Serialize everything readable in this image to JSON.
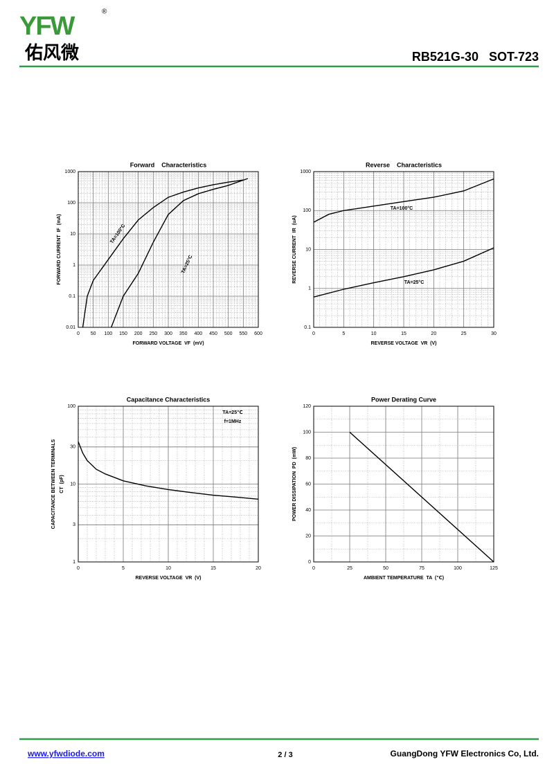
{
  "header": {
    "logo": "YFW",
    "registered": "®",
    "logo_cn": "佑风微",
    "part": "RB521G-30   SOT-723"
  },
  "footer": {
    "website": "www.yfwdiode.com",
    "page": "2 / 3",
    "company": "GuangDong YFW Electronics Co, Ltd."
  },
  "chart_data": [
    {
      "type": "line",
      "title": "Forward    Characteristics",
      "xlabel": "FORWARD VOLTAGE  VF  (mV)",
      "ylabel": "FORWARD CURRENT  IF  (mA)",
      "xlim": [
        0,
        600
      ],
      "xticks": [
        0,
        50,
        100,
        150,
        200,
        250,
        300,
        350,
        400,
        450,
        500,
        550,
        600
      ],
      "ylim": [
        0.01,
        1000
      ],
      "yticks": [
        0.01,
        0.1,
        1,
        10,
        100,
        1000
      ],
      "ylog": true,
      "grid": true,
      "series": [
        {
          "name": "TA=100°C",
          "color": "#000000",
          "x": [
            15,
            30,
            50,
            100,
            150,
            200,
            250,
            300,
            350,
            400,
            450,
            500,
            550
          ],
          "values": [
            0.01,
            0.1,
            0.32,
            1.5,
            7,
            28,
            70,
            150,
            220,
            300,
            380,
            460,
            540
          ]
        },
        {
          "name": "TA=25°C",
          "color": "#000000",
          "x": [
            110,
            150,
            200,
            250,
            300,
            350,
            400,
            450,
            500,
            565
          ],
          "values": [
            0.01,
            0.1,
            0.54,
            5.4,
            42,
            117,
            195,
            270,
            360,
            600
          ]
        }
      ]
    },
    {
      "type": "line",
      "title": "Reverse    Characteristics",
      "xlabel": "REVERSE VOLTAGE  VR  (V)",
      "ylabel": "REVERSE CURRENT  IR  (uA)",
      "xlim": [
        0,
        30
      ],
      "xticks": [
        0,
        5,
        10,
        15,
        20,
        25,
        30
      ],
      "ylim": [
        0.1,
        1000
      ],
      "yticks": [
        0.1,
        1,
        10,
        100,
        1000
      ],
      "ylog": true,
      "grid": true,
      "series": [
        {
          "name": "TA=100°C",
          "color": "#000000",
          "x": [
            0,
            2.5,
            5,
            10,
            15,
            20,
            25,
            30
          ],
          "values": [
            50,
            80,
            100,
            130,
            170,
            220,
            320,
            650
          ]
        },
        {
          "name": "TA=25°C",
          "color": "#000000",
          "x": [
            0,
            5,
            10,
            15,
            20,
            25,
            30
          ],
          "values": [
            0.6,
            0.95,
            1.4,
            2,
            3,
            5,
            11
          ]
        }
      ]
    },
    {
      "type": "line",
      "title": "Capacitance Characteristics",
      "xlabel": "REVERSE VOLTAGE  VR  (V)",
      "ylabel": [
        "CAPACITANCE BETWEEN TERMINALS",
        "CT  (pF)"
      ],
      "xlim": [
        0,
        20
      ],
      "xticks": [
        0,
        5,
        10,
        15,
        20
      ],
      "ylim": [
        1,
        100
      ],
      "yticks": [
        1,
        3,
        10,
        30,
        100
      ],
      "ylog": true,
      "grid": true,
      "annotations": [
        "TA=25℃",
        "f=1MHz"
      ],
      "series": [
        {
          "color": "#000000",
          "x": [
            0,
            0.5,
            1,
            2,
            3,
            5,
            7.5,
            10,
            12.5,
            15,
            17.5,
            20
          ],
          "values": [
            35,
            25,
            20,
            15.5,
            13.5,
            11,
            9.5,
            8.5,
            7.8,
            7.2,
            6.8,
            6.4
          ]
        }
      ]
    },
    {
      "type": "line",
      "title": "Power Derating Curve",
      "xlabel": "AMBIENT TEMPERATURE  TA  (℃)",
      "ylabel": "POWER DISSIPATION  PD  (mW)",
      "xlim": [
        0,
        125
      ],
      "xticks": [
        0,
        25,
        50,
        75,
        100,
        125
      ],
      "ylim": [
        0,
        120
      ],
      "yticks": [
        0,
        20,
        40,
        60,
        80,
        100,
        120
      ],
      "ylog": false,
      "grid": true,
      "series": [
        {
          "color": "#000000",
          "x": [
            25,
            125
          ],
          "values": [
            100,
            0
          ]
        }
      ]
    }
  ]
}
